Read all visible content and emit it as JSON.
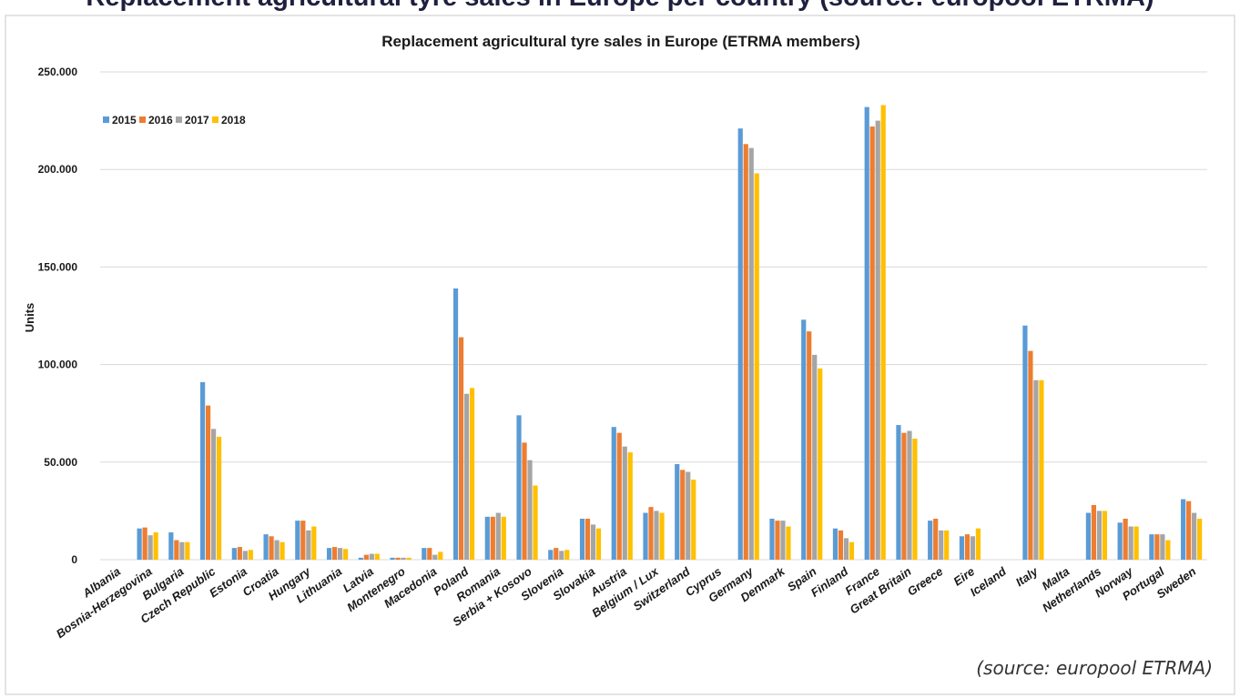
{
  "header_text": "Replacement agricultural tyre sales in Europe per country (source: europool ETRMA)",
  "source_note": "(source: europool ETRMA)",
  "colors": {
    "2015": "#5b9bd5",
    "2016": "#ed7d31",
    "2017": "#a5a5a5",
    "2018": "#ffc000",
    "grid": "#d9d9d9"
  },
  "chart_data": {
    "type": "bar",
    "title": "Replacement agricultural tyre sales in Europe (ETRMA members)",
    "xlabel": "",
    "ylabel": "Units",
    "ylim": [
      0,
      250000
    ],
    "yticks": [
      0,
      50000,
      100000,
      150000,
      200000,
      250000
    ],
    "ytick_labels": [
      "0",
      "50.000",
      "100.000",
      "150.000",
      "200.000",
      "250.000"
    ],
    "grid": true,
    "legend_position": "top-left",
    "categories": [
      "Albania",
      "Bosnia-Herzegovina",
      "Bulgaria",
      "Czech Republic",
      "Estonia",
      "Croatia",
      "Hungary",
      "Lithuania",
      "Latvia",
      "Montenegro",
      "Macedonia",
      "Poland",
      "Romania",
      "Serbia + Kosovo",
      "Slovenia",
      "Slovakia",
      "Austria",
      "Belgium / Lux",
      "Switzerland",
      "Cyprus",
      "Germany",
      "Denmark",
      "Spain",
      "Finland",
      "France",
      "Great Britain",
      "Greece",
      "Eire",
      "Iceland",
      "Italy",
      "Malta",
      "Netherlands",
      "Norway",
      "Portugal",
      "Sweden"
    ],
    "series": [
      {
        "name": "2015",
        "values": [
          0,
          16000,
          14000,
          91000,
          6000,
          13000,
          20000,
          6000,
          1000,
          1000,
          6000,
          139000,
          22000,
          74000,
          5000,
          21000,
          68000,
          24000,
          49000,
          0,
          221000,
          21000,
          123000,
          16000,
          232000,
          69000,
          20000,
          12000,
          0,
          120000,
          0,
          24000,
          19000,
          13000,
          31000
        ]
      },
      {
        "name": "2016",
        "values": [
          0,
          16500,
          10000,
          79000,
          6500,
          12000,
          20000,
          6500,
          2500,
          1000,
          6000,
          114000,
          22000,
          60000,
          6000,
          21000,
          65000,
          27000,
          46000,
          0,
          213000,
          20000,
          117000,
          15000,
          222000,
          65000,
          21000,
          13000,
          0,
          107000,
          0,
          28000,
          21000,
          13000,
          30000
        ]
      },
      {
        "name": "2017",
        "values": [
          0,
          12500,
          9000,
          67000,
          4500,
          10000,
          15000,
          6000,
          3000,
          1000,
          2500,
          85000,
          24000,
          51000,
          4500,
          18000,
          58000,
          25000,
          45000,
          0,
          211000,
          20000,
          105000,
          11000,
          225000,
          66000,
          15000,
          12000,
          0,
          92000,
          0,
          25000,
          17000,
          13000,
          24000
        ]
      },
      {
        "name": "2018",
        "values": [
          0,
          14000,
          9000,
          63000,
          5000,
          9000,
          17000,
          5500,
          3000,
          1000,
          4000,
          88000,
          22000,
          38000,
          5000,
          16000,
          55000,
          24000,
          41000,
          0,
          198000,
          17000,
          98000,
          9000,
          233000,
          62000,
          15000,
          16000,
          0,
          92000,
          0,
          25000,
          17000,
          10000,
          21000
        ]
      }
    ]
  }
}
